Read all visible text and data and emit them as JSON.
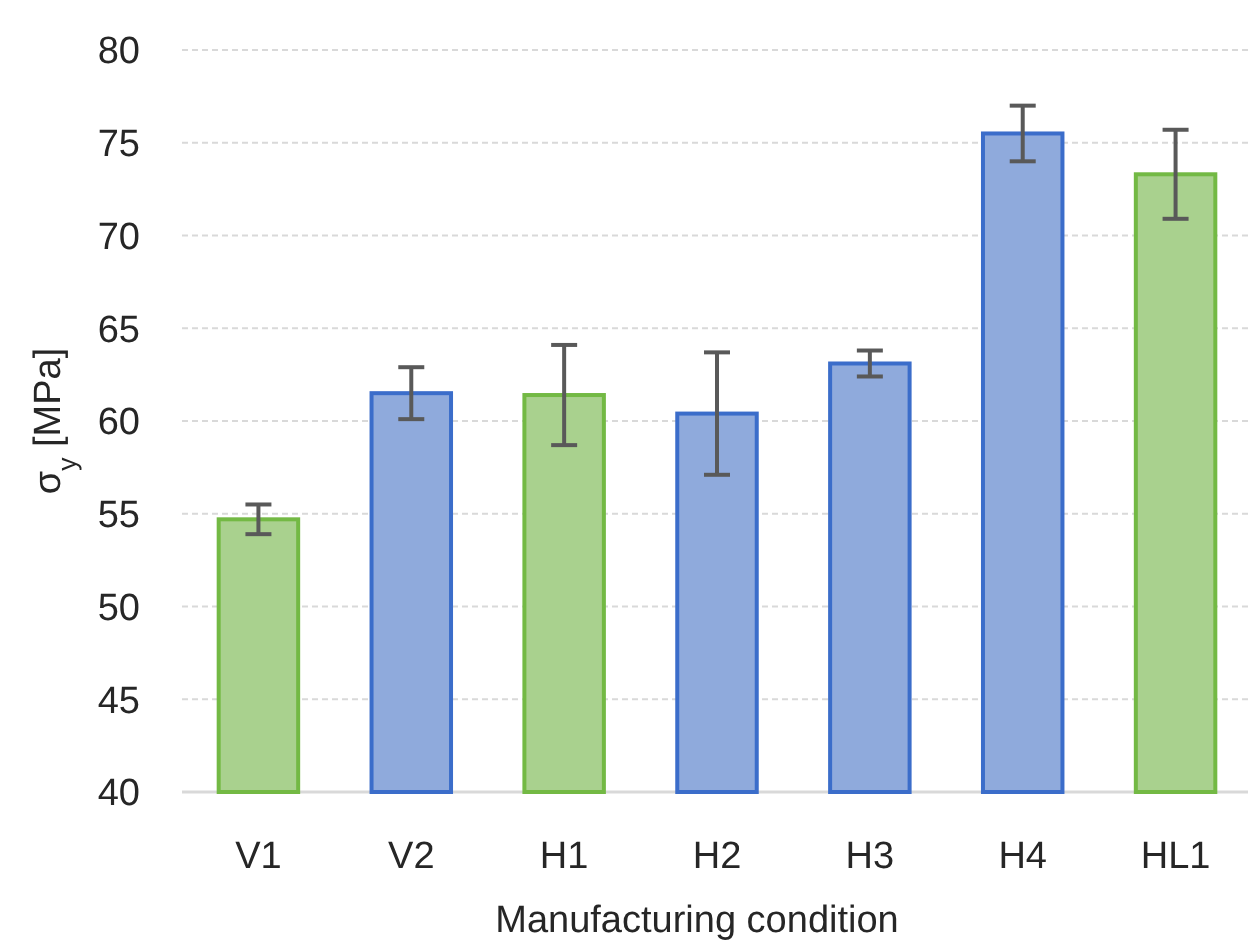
{
  "chart_data": {
    "type": "bar",
    "xlabel": "Manufacturing condition",
    "ylabel": "σ$_{y}$ [MPa]",
    "categories": [
      "V1",
      "V2",
      "H1",
      "H2",
      "H3",
      "H4",
      "HL1"
    ],
    "values": [
      54.7,
      61.5,
      61.4,
      60.4,
      63.1,
      75.5,
      73.3
    ],
    "colors": [
      "#a9d18e",
      "#8faadc",
      "#a9d18e",
      "#8faadc",
      "#8faadc",
      "#8faadc",
      "#a9d18e"
    ],
    "errors": [
      0.8,
      1.4,
      2.7,
      3.3,
      0.7,
      1.5,
      2.4
    ],
    "ylim": [
      40,
      80
    ],
    "yticks": [
      40,
      45,
      50,
      55,
      60,
      65,
      70,
      75,
      80
    ],
    "grid": "y"
  }
}
